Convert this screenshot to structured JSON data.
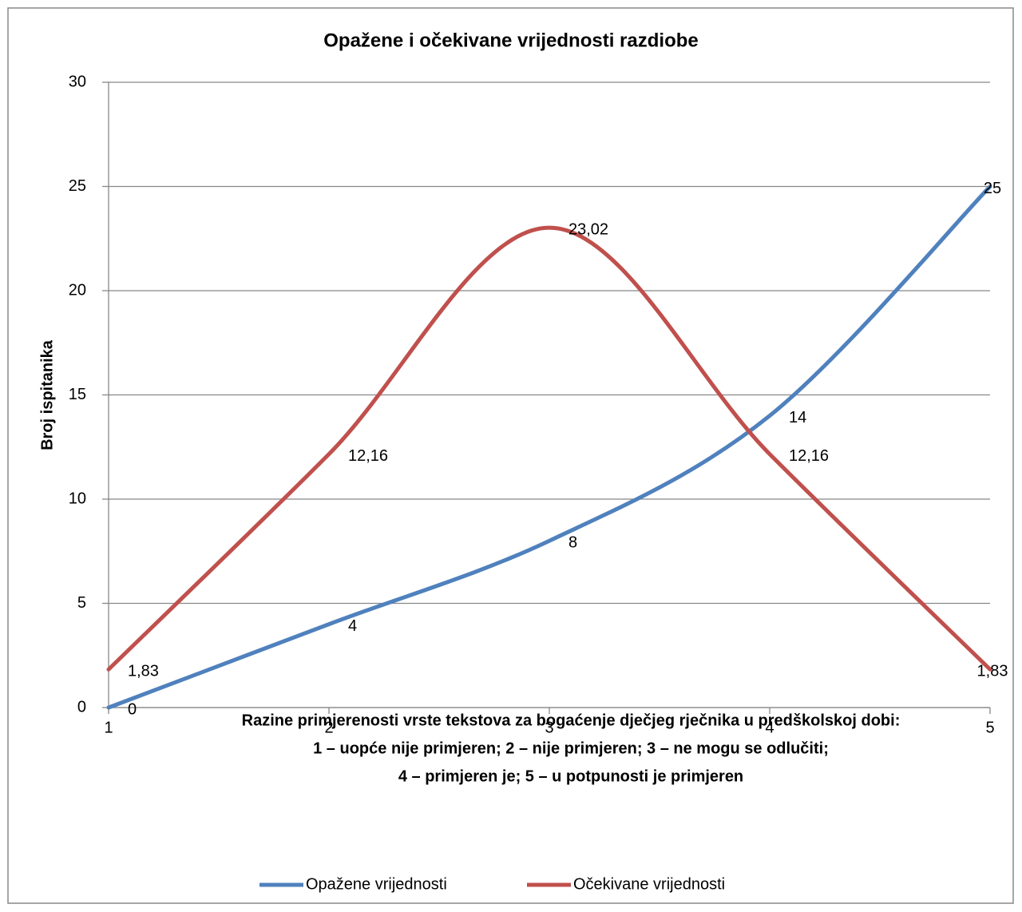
{
  "chart_data": {
    "type": "line",
    "title": "Opažene i očekivane vrijednosti razdiobe",
    "xlabel": [
      "Razine primjerenosti vrste tekstova za bogaćenje dječjeg rječnika u predškolskoj dobi:",
      "1 – uopće nije primjeren; 2 – nije primjeren; 3 – ne mogu se odlučiti;",
      "4 – primjeren je; 5 – u potpunosti je primjeren"
    ],
    "ylabel": "Broj ispitanika",
    "x": [
      1,
      2,
      3,
      4,
      5
    ],
    "series": [
      {
        "name": "Opažene vrijednosti",
        "color": "#4f81bd",
        "values": [
          0,
          4,
          8,
          14,
          25
        ]
      },
      {
        "name": "Očekivane vrijednosti",
        "color": "#c0504d",
        "values": [
          1.83,
          12.16,
          23.02,
          12.16,
          1.83
        ],
        "value_labels": [
          "1,83",
          "12,16",
          "23,02",
          "12,16",
          "1,83"
        ]
      }
    ],
    "xlim": [
      1,
      5
    ],
    "xticks": [
      1,
      2,
      3,
      4,
      5
    ],
    "ylim": [
      0,
      30
    ],
    "yticks": [
      0,
      5,
      10,
      15,
      20,
      25,
      30
    ],
    "grid": true,
    "legend": "bottom",
    "smooth": true
  }
}
